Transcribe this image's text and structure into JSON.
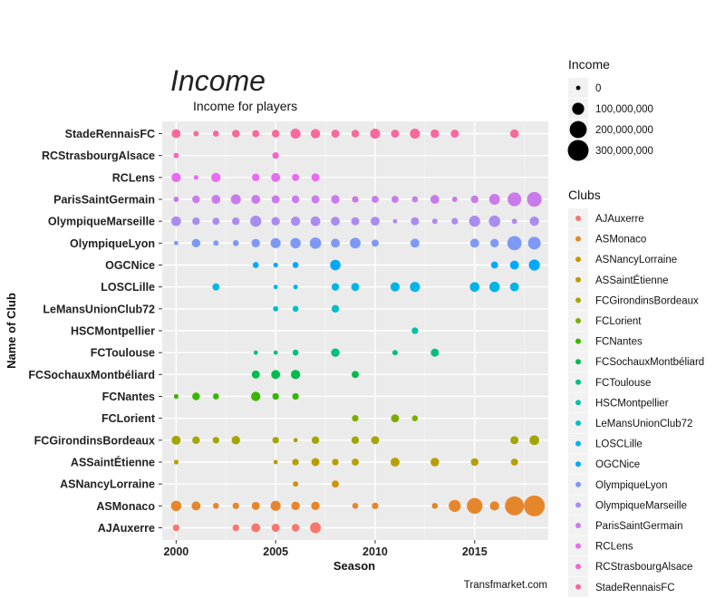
{
  "chart_data": {
    "type": "scatter",
    "title": "Income",
    "subtitle": "Income for players",
    "xlabel": "Season",
    "ylabel": "Name of Club",
    "caption": "Transfmarket.com",
    "xlim": [
      1999.3,
      2018.7
    ],
    "x_ticks": [
      2000,
      2005,
      2010,
      2015
    ],
    "categories": [
      "AJAuxerre",
      "ASMonaco",
      "ASNancyLorraine",
      "ASSaintÉtienne",
      "FCGirondinsBordeaux",
      "FCLorient",
      "FCNantes",
      "FCSochauxMontbéliard",
      "FCToulouse",
      "HSCMontpellier",
      "LeMansUnionClub72",
      "LOSCLille",
      "OGCNice",
      "OlympiqueLyon",
      "OlympiqueMarseille",
      "ParisSaintGermain",
      "RCLens",
      "RCStrasbourgAlsace",
      "StadeRennaisFC"
    ],
    "size_legend": {
      "title": "Income",
      "entries": [
        {
          "label": "0",
          "value": 0
        },
        {
          "label": "100,000,000",
          "value": 100000000
        },
        {
          "label": "200,000,000",
          "value": 200000000
        },
        {
          "label": "300,000,000",
          "value": 300000000
        }
      ]
    },
    "color_legend": {
      "title": "Clubs",
      "entries": [
        {
          "label": "AJAuxerre",
          "color": "#F8766D"
        },
        {
          "label": "ASMonaco",
          "color": "#E6862B"
        },
        {
          "label": "ASNancyLorraine",
          "color": "#CB9500"
        },
        {
          "label": "ASSaintÉtienne",
          "color": "#B79F00"
        },
        {
          "label": "FCGirondinsBordeaux",
          "color": "#A3A500"
        },
        {
          "label": "FCLorient",
          "color": "#7CAE00"
        },
        {
          "label": "FCNantes",
          "color": "#39B600"
        },
        {
          "label": "FCSochauxMontbéliard",
          "color": "#00BB4E"
        },
        {
          "label": "FCToulouse",
          "color": "#00BF7D"
        },
        {
          "label": "HSCMontpellier",
          "color": "#00C1A3"
        },
        {
          "label": "LeMansUnionClub72",
          "color": "#00BFC4"
        },
        {
          "label": "LOSCLille",
          "color": "#00B4E7"
        },
        {
          "label": "OGCNice",
          "color": "#00A9FF"
        },
        {
          "label": "OlympiqueLyon",
          "color": "#7E99F5"
        },
        {
          "label": "OlympiqueMarseille",
          "color": "#A98CF0"
        },
        {
          "label": "ParisSaintGermain",
          "color": "#C97BEC"
        },
        {
          "label": "RCLens",
          "color": "#E76BF3"
        },
        {
          "label": "RCStrasbourgAlsace",
          "color": "#F266C8"
        },
        {
          "label": "StadeRennaisFC",
          "color": "#F8679D"
        }
      ]
    },
    "series": [
      {
        "name": "AJAuxerre",
        "points": [
          [
            2000,
            30000000
          ],
          [
            2003,
            30000000
          ],
          [
            2004,
            55000000
          ],
          [
            2005,
            45000000
          ],
          [
            2006,
            40000000
          ],
          [
            2007,
            80000000
          ]
        ]
      },
      {
        "name": "ASMonaco",
        "points": [
          [
            2000,
            75000000
          ],
          [
            2001,
            55000000
          ],
          [
            2002,
            25000000
          ],
          [
            2003,
            30000000
          ],
          [
            2004,
            45000000
          ],
          [
            2005,
            70000000
          ],
          [
            2006,
            50000000
          ],
          [
            2007,
            50000000
          ],
          [
            2009,
            25000000
          ],
          [
            2010,
            30000000
          ],
          [
            2013,
            25000000
          ],
          [
            2014,
            100000000
          ],
          [
            2015,
            170000000
          ],
          [
            2016,
            60000000
          ],
          [
            2017,
            250000000
          ],
          [
            2018,
            300000000
          ]
        ]
      },
      {
        "name": "ASNancyLorraine",
        "points": [
          [
            2006,
            20000000
          ],
          [
            2008,
            35000000
          ]
        ]
      },
      {
        "name": "ASSaintÉtienne",
        "points": [
          [
            2000,
            15000000
          ],
          [
            2005,
            8000000
          ],
          [
            2006,
            30000000
          ],
          [
            2007,
            45000000
          ],
          [
            2008,
            30000000
          ],
          [
            2009,
            35000000
          ],
          [
            2011,
            55000000
          ],
          [
            2013,
            50000000
          ],
          [
            2015,
            40000000
          ],
          [
            2017,
            35000000
          ]
        ]
      },
      {
        "name": "FCGirondinsBordeaux",
        "points": [
          [
            2000,
            55000000
          ],
          [
            2001,
            40000000
          ],
          [
            2002,
            30000000
          ],
          [
            2003,
            50000000
          ],
          [
            2005,
            30000000
          ],
          [
            2006,
            10000000
          ],
          [
            2007,
            40000000
          ],
          [
            2009,
            40000000
          ],
          [
            2010,
            45000000
          ],
          [
            2017,
            45000000
          ],
          [
            2018,
            65000000
          ]
        ]
      },
      {
        "name": "FCLorient",
        "points": [
          [
            2009,
            30000000
          ],
          [
            2011,
            45000000
          ],
          [
            2012,
            25000000
          ]
        ]
      },
      {
        "name": "FCNantes",
        "points": [
          [
            2000,
            15000000
          ],
          [
            2001,
            40000000
          ],
          [
            2002,
            25000000
          ],
          [
            2004,
            60000000
          ],
          [
            2005,
            30000000
          ],
          [
            2006,
            30000000
          ]
        ]
      },
      {
        "name": "FCSochauxMontbéliard",
        "points": [
          [
            2004,
            45000000
          ],
          [
            2005,
            55000000
          ],
          [
            2006,
            60000000
          ],
          [
            2009,
            35000000
          ]
        ]
      },
      {
        "name": "FCToulouse",
        "points": [
          [
            2004,
            8000000
          ],
          [
            2005,
            10000000
          ],
          [
            2006,
            25000000
          ],
          [
            2008,
            50000000
          ],
          [
            2011,
            20000000
          ],
          [
            2013,
            45000000
          ]
        ]
      },
      {
        "name": "HSCMontpellier",
        "points": [
          [
            2012,
            30000000
          ]
        ]
      },
      {
        "name": "LeMansUnionClub72",
        "points": [
          [
            2005,
            20000000
          ],
          [
            2006,
            25000000
          ],
          [
            2008,
            40000000
          ]
        ]
      },
      {
        "name": "LOSCLille",
        "points": [
          [
            2002,
            35000000
          ],
          [
            2005,
            10000000
          ],
          [
            2006,
            15000000
          ],
          [
            2008,
            40000000
          ],
          [
            2009,
            45000000
          ],
          [
            2011,
            60000000
          ],
          [
            2012,
            70000000
          ],
          [
            2015,
            65000000
          ],
          [
            2016,
            75000000
          ],
          [
            2017,
            55000000
          ]
        ]
      },
      {
        "name": "OGCNice",
        "points": [
          [
            2004,
            25000000
          ],
          [
            2005,
            15000000
          ],
          [
            2006,
            25000000
          ],
          [
            2008,
            75000000
          ],
          [
            2016,
            35000000
          ],
          [
            2017,
            55000000
          ],
          [
            2018,
            85000000
          ]
        ]
      },
      {
        "name": "OlympiqueLyon",
        "points": [
          [
            2000,
            12000000
          ],
          [
            2001,
            50000000
          ],
          [
            2002,
            20000000
          ],
          [
            2003,
            25000000
          ],
          [
            2004,
            50000000
          ],
          [
            2005,
            70000000
          ],
          [
            2006,
            75000000
          ],
          [
            2007,
            90000000
          ],
          [
            2008,
            55000000
          ],
          [
            2009,
            80000000
          ],
          [
            2010,
            35000000
          ],
          [
            2012,
            55000000
          ],
          [
            2015,
            55000000
          ],
          [
            2016,
            50000000
          ],
          [
            2017,
            140000000
          ],
          [
            2018,
            110000000
          ]
        ]
      },
      {
        "name": "OlympiqueMarseille",
        "points": [
          [
            2000,
            65000000
          ],
          [
            2001,
            40000000
          ],
          [
            2002,
            35000000
          ],
          [
            2003,
            40000000
          ],
          [
            2004,
            85000000
          ],
          [
            2005,
            50000000
          ],
          [
            2006,
            60000000
          ],
          [
            2007,
            65000000
          ],
          [
            2008,
            55000000
          ],
          [
            2009,
            45000000
          ],
          [
            2010,
            55000000
          ],
          [
            2011,
            12000000
          ],
          [
            2012,
            45000000
          ],
          [
            2013,
            20000000
          ],
          [
            2014,
            30000000
          ],
          [
            2015,
            85000000
          ],
          [
            2016,
            90000000
          ],
          [
            2017,
            20000000
          ],
          [
            2018,
            60000000
          ]
        ]
      },
      {
        "name": "ParisSaintGermain",
        "points": [
          [
            2000,
            20000000
          ],
          [
            2001,
            40000000
          ],
          [
            2002,
            55000000
          ],
          [
            2003,
            70000000
          ],
          [
            2004,
            55000000
          ],
          [
            2005,
            45000000
          ],
          [
            2006,
            40000000
          ],
          [
            2007,
            45000000
          ],
          [
            2008,
            50000000
          ],
          [
            2009,
            30000000
          ],
          [
            2010,
            35000000
          ],
          [
            2011,
            35000000
          ],
          [
            2012,
            25000000
          ],
          [
            2013,
            55000000
          ],
          [
            2014,
            20000000
          ],
          [
            2015,
            40000000
          ],
          [
            2016,
            80000000
          ],
          [
            2017,
            130000000
          ],
          [
            2018,
            150000000
          ]
        ]
      },
      {
        "name": "RCLens",
        "points": [
          [
            2000,
            60000000
          ],
          [
            2001,
            15000000
          ],
          [
            2002,
            60000000
          ],
          [
            2004,
            40000000
          ],
          [
            2005,
            55000000
          ],
          [
            2006,
            35000000
          ],
          [
            2007,
            45000000
          ]
        ]
      },
      {
        "name": "RCStrasbourgAlsace",
        "points": [
          [
            2000,
            20000000
          ],
          [
            2005,
            30000000
          ]
        ]
      },
      {
        "name": "StadeRennaisFC",
        "points": [
          [
            2000,
            55000000
          ],
          [
            2001,
            20000000
          ],
          [
            2002,
            25000000
          ],
          [
            2003,
            40000000
          ],
          [
            2004,
            35000000
          ],
          [
            2005,
            40000000
          ],
          [
            2006,
            70000000
          ],
          [
            2007,
            60000000
          ],
          [
            2008,
            45000000
          ],
          [
            2009,
            40000000
          ],
          [
            2010,
            70000000
          ],
          [
            2011,
            45000000
          ],
          [
            2012,
            70000000
          ],
          [
            2013,
            50000000
          ],
          [
            2014,
            45000000
          ],
          [
            2017,
            50000000
          ]
        ]
      }
    ]
  }
}
